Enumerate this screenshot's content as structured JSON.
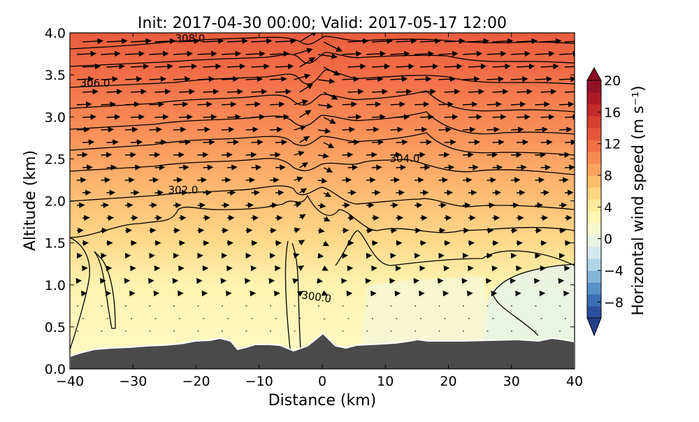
{
  "chart_data": {
    "type": "heatmap",
    "title": "Init: 2017-04-30 00:00; Valid: 2017-05-17 12:00",
    "xlabel": "Distance (km)",
    "ylabel": "Altitude (km)",
    "xlim": [
      -40,
      40
    ],
    "ylim": [
      0,
      4
    ],
    "x_ticks": [
      "−40",
      "−30",
      "−20",
      "−10",
      "0",
      "10",
      "20",
      "30",
      "40"
    ],
    "y_ticks": [
      "0.0",
      "0.5",
      "1.0",
      "1.5",
      "2.0",
      "2.5",
      "3.0",
      "3.5",
      "4.0"
    ],
    "colorbar": {
      "label": "Horizontal wind speed (m s⁻¹)",
      "range": [
        -10,
        20
      ],
      "extend": "both",
      "ticks": [
        "20",
        "16",
        "12",
        "8",
        "4",
        "0",
        "−4",
        "−8"
      ],
      "tick_values": [
        20,
        16,
        12,
        8,
        4,
        0,
        -4,
        -8
      ]
    },
    "contour_labels": [
      "308.0",
      "306.0",
      "304.0",
      "302.0",
      "300.0"
    ],
    "terrain_color": "#4a4a4a",
    "wind_field": {
      "type": "quiver",
      "description_free": true
    }
  }
}
